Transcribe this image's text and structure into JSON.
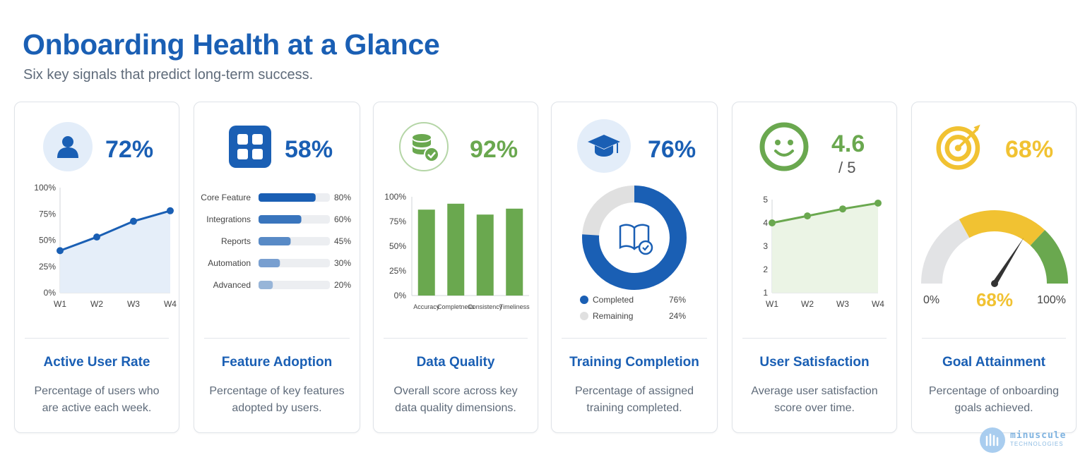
{
  "header": {
    "title": "Onboarding Health at a Glance",
    "subtitle": "Six key signals that predict long-term success."
  },
  "colors": {
    "blue": "#1a5fb4",
    "green": "#6aa84f",
    "yellow": "#f1c232",
    "gray": "#e0e0e0"
  },
  "cards": [
    {
      "icon": "user-icon",
      "metric": "72%",
      "title": "Active User Rate",
      "desc": "Percentage of users who are active each week."
    },
    {
      "icon": "grid-icon",
      "metric": "58%",
      "title": "Feature Adoption",
      "desc": "Percentage of key features adopted by users."
    },
    {
      "icon": "database-check-icon",
      "metric": "92%",
      "title": "Data Quality",
      "desc": "Overall score across key data quality dimensions."
    },
    {
      "icon": "graduation-cap-icon",
      "metric": "76%",
      "title": "Training Completion",
      "desc": "Percentage of assigned training completed."
    },
    {
      "icon": "smiley-icon",
      "metric": "4.6",
      "metric_sub": "/ 5",
      "title": "User Satisfaction",
      "desc": "Average user satisfaction score over time."
    },
    {
      "icon": "target-icon",
      "metric": "68%",
      "title": "Goal Attainment",
      "desc": "Percentage of onboarding goals achieved."
    }
  ],
  "chart_data": [
    {
      "type": "area",
      "x": [
        "W1",
        "W2",
        "W3",
        "W4"
      ],
      "values": [
        40,
        53,
        68,
        78
      ],
      "ylim": [
        0,
        100
      ],
      "yticks": [
        "0%",
        "25%",
        "50%",
        "75%",
        "100%"
      ]
    },
    {
      "type": "bar",
      "orientation": "horizontal",
      "categories": [
        "Core Feature",
        "Integrations",
        "Reports",
        "Automation",
        "Advanced"
      ],
      "values": [
        80,
        60,
        45,
        30,
        20
      ],
      "value_labels": [
        "80%",
        "60%",
        "45%",
        "30%",
        "20%"
      ],
      "xlim": [
        0,
        100
      ]
    },
    {
      "type": "bar",
      "categories": [
        "Accuracy",
        "Completness",
        "Consistency",
        "Timeliness"
      ],
      "values": [
        87,
        93,
        82,
        88
      ],
      "ylim": [
        0,
        100
      ],
      "yticks": [
        "0%",
        "25%",
        "50%",
        "75%",
        "100%"
      ]
    },
    {
      "type": "pie",
      "style": "donut",
      "labels": [
        "Completed",
        "Remaining"
      ],
      "values": [
        76,
        24
      ],
      "value_labels": [
        "76%",
        "24%"
      ]
    },
    {
      "type": "area",
      "x": [
        "W1",
        "W2",
        "W3",
        "W4"
      ],
      "values": [
        4.0,
        4.3,
        4.6,
        4.85
      ],
      "ylim": [
        1,
        5
      ],
      "yticks": [
        "1",
        "2",
        "3",
        "4",
        "5"
      ]
    },
    {
      "type": "gauge",
      "value": 68,
      "min_label": "0%",
      "max_label": "100%",
      "value_label": "68%"
    }
  ]
}
